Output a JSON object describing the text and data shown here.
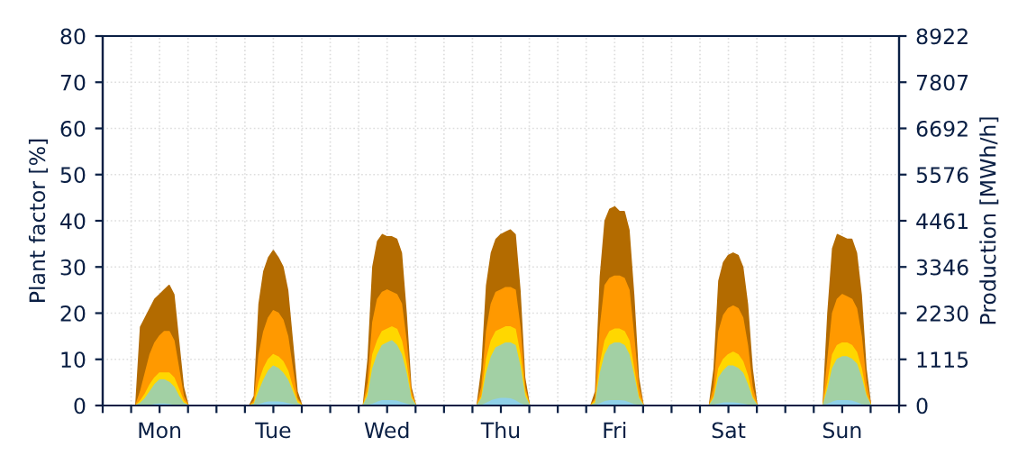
{
  "chart_data": {
    "type": "area",
    "ylabel": "Plant factor [%]",
    "y2label": "Production [MWh/h]",
    "categories": [
      null,
      null,
      null,
      null,
      null,
      null,
      null,
      null,
      null,
      null,
      null,
      null,
      "Mon",
      null,
      null,
      null,
      null,
      null,
      null,
      null,
      null,
      null,
      null,
      null,
      null,
      null,
      null,
      null,
      null,
      null,
      null,
      null,
      null,
      null,
      null,
      null,
      "Tue",
      null,
      null,
      null,
      null,
      null,
      null,
      null,
      null,
      null,
      null,
      null,
      null,
      null,
      null,
      null,
      null,
      null,
      null,
      null,
      null,
      null,
      null,
      null,
      "Wed",
      null,
      null,
      null,
      null,
      null,
      null,
      null,
      null,
      null,
      null,
      null,
      null,
      null,
      null,
      null,
      null,
      null,
      null,
      null,
      null,
      null,
      null,
      null,
      "Thu",
      null,
      null,
      null,
      null,
      null,
      null,
      null,
      null,
      null,
      null,
      null,
      null,
      null,
      null,
      null,
      null,
      null,
      null,
      null,
      null,
      null,
      null,
      null,
      "Fri",
      null,
      null,
      null,
      null,
      null,
      null,
      null,
      null,
      null,
      null,
      null,
      null,
      null,
      null,
      null,
      null,
      null,
      null,
      null,
      null,
      null,
      null,
      null,
      "Sat",
      null,
      null,
      null,
      null,
      null,
      null,
      null,
      null,
      null,
      null,
      null,
      null,
      null,
      null,
      null,
      null,
      null,
      null,
      null,
      null,
      null,
      null,
      null,
      "Sun",
      null,
      null,
      null,
      null,
      null,
      null,
      null,
      null,
      null,
      null,
      null,
      null
    ],
    "series": [
      {
        "color": "#b36b00",
        "values": [
          0,
          0,
          0,
          0,
          0,
          0,
          0,
          0,
          17,
          19,
          21,
          23,
          24,
          25,
          26,
          24,
          14,
          4,
          0,
          0,
          0,
          0,
          0,
          0,
          0,
          0,
          0,
          0,
          0,
          0,
          0,
          0,
          2,
          22,
          29,
          32,
          33.5,
          32,
          30,
          25,
          14,
          3,
          0,
          0,
          0,
          0,
          0,
          0,
          0,
          0,
          0,
          0,
          0,
          0,
          0,
          0,
          10,
          30,
          35.5,
          37,
          36.5,
          36.5,
          36,
          33,
          20,
          4,
          0,
          0,
          0,
          0,
          0,
          0,
          0,
          0,
          0,
          0,
          0,
          0,
          0,
          0,
          8,
          26,
          33,
          36,
          37,
          37.5,
          38,
          37,
          25,
          6,
          0,
          0,
          0,
          0,
          0,
          0,
          0,
          0,
          0,
          0,
          0,
          0,
          0,
          0,
          3,
          28,
          40,
          42.5,
          43,
          42,
          42,
          38,
          24,
          6,
          0,
          0,
          0,
          0,
          0,
          0,
          0,
          0,
          0,
          0,
          0,
          0,
          0,
          0,
          0,
          8,
          27,
          31,
          32.5,
          33,
          32.5,
          30,
          22,
          8,
          0,
          0,
          0,
          0,
          0,
          0,
          0,
          0,
          0,
          0,
          0,
          0,
          0,
          0,
          0,
          20,
          34,
          37,
          36.5,
          36,
          36,
          33,
          24,
          8,
          0,
          0,
          0,
          0,
          0,
          0,
          0
        ]
      },
      {
        "color": "#ff9900",
        "values": [
          0,
          0,
          0,
          0,
          0,
          0,
          0,
          0,
          3,
          7,
          11,
          13.5,
          15,
          16,
          16,
          14,
          8,
          2,
          0,
          0,
          0,
          0,
          0,
          0,
          0,
          0,
          0,
          0,
          0,
          0,
          0,
          0,
          1,
          11,
          16,
          19,
          20.5,
          20,
          18.5,
          15,
          8,
          1.5,
          0,
          0,
          0,
          0,
          0,
          0,
          0,
          0,
          0,
          0,
          0,
          0,
          0,
          0,
          5,
          18,
          23,
          24.5,
          25,
          24.5,
          24,
          22,
          14,
          3,
          0,
          0,
          0,
          0,
          0,
          0,
          0,
          0,
          0,
          0,
          0,
          0,
          0,
          0,
          4,
          16,
          22,
          24.5,
          25,
          25.5,
          25.5,
          25,
          17,
          4,
          0,
          0,
          0,
          0,
          0,
          0,
          0,
          0,
          0,
          0,
          0,
          0,
          0,
          0,
          1.5,
          17,
          26,
          27.5,
          28,
          28,
          27.5,
          25,
          15,
          4,
          0,
          0,
          0,
          0,
          0,
          0,
          0,
          0,
          0,
          0,
          0,
          0,
          0,
          0,
          0,
          4,
          16,
          19.5,
          21,
          21.5,
          21,
          19,
          13,
          4,
          0,
          0,
          0,
          0,
          0,
          0,
          0,
          0,
          0,
          0,
          0,
          0,
          0,
          0,
          0,
          10,
          20,
          23,
          24,
          23.5,
          23,
          21,
          15,
          5,
          0,
          0,
          0,
          0,
          0,
          0,
          0
        ]
      },
      {
        "color": "#ffd700",
        "values": [
          0,
          0,
          0,
          0,
          0,
          0,
          0,
          0,
          1,
          2.5,
          4.5,
          6,
          7,
          7,
          7,
          6,
          3.5,
          1,
          0,
          0,
          0,
          0,
          0,
          0,
          0,
          0,
          0,
          0,
          0,
          0,
          0,
          0,
          0.5,
          5,
          8,
          10,
          11,
          10.5,
          9.5,
          7.5,
          4,
          1,
          0,
          0,
          0,
          0,
          0,
          0,
          0,
          0,
          0,
          0,
          0,
          0,
          0,
          0,
          3,
          11,
          14,
          16,
          16.5,
          17,
          16.5,
          14,
          9,
          2,
          0,
          0,
          0,
          0,
          0,
          0,
          0,
          0,
          0,
          0,
          0,
          0,
          0,
          0,
          2,
          10,
          14,
          16,
          16.5,
          17,
          17,
          16.5,
          11,
          3,
          0,
          0,
          0,
          0,
          0,
          0,
          0,
          0,
          0,
          0,
          0,
          0,
          0,
          0,
          1,
          9,
          14,
          16,
          16.5,
          16.5,
          16,
          14,
          8,
          2,
          0,
          0,
          0,
          0,
          0,
          0,
          0,
          0,
          0,
          0,
          0,
          0,
          0,
          0,
          0,
          2,
          8,
          10,
          11,
          11.5,
          11,
          9.5,
          6.5,
          2,
          0,
          0,
          0,
          0,
          0,
          0,
          0,
          0,
          0,
          0,
          0,
          0,
          0,
          0,
          0,
          5,
          11,
          13,
          13.5,
          13.5,
          13,
          11.5,
          8,
          2.5,
          0,
          0,
          0,
          0,
          0,
          0,
          0
        ]
      },
      {
        "color": "#a2d0a4",
        "values": [
          0,
          0,
          0,
          0,
          0,
          0,
          0,
          0,
          0.5,
          1.5,
          3,
          4.5,
          5.5,
          5.5,
          5,
          4,
          2,
          0.5,
          0,
          0,
          0,
          0,
          0,
          0,
          0,
          0,
          0,
          0,
          0,
          0,
          0,
          0,
          0.3,
          3,
          5.5,
          7.5,
          8.5,
          8,
          7,
          5.5,
          3,
          0.5,
          0,
          0,
          0,
          0,
          0,
          0,
          0,
          0,
          0,
          0,
          0,
          0,
          0,
          0,
          2,
          8,
          11,
          13,
          13.5,
          14,
          13,
          11,
          7,
          1.5,
          0,
          0,
          0,
          0,
          0,
          0,
          0,
          0,
          0,
          0,
          0,
          0,
          0,
          0,
          1.5,
          7,
          10.5,
          12.5,
          13,
          13.5,
          13.5,
          13,
          8.5,
          2,
          0,
          0,
          0,
          0,
          0,
          0,
          0,
          0,
          0,
          0,
          0,
          0,
          0,
          0,
          0.5,
          7,
          11,
          13,
          13.5,
          13.5,
          13,
          11,
          6.5,
          1.5,
          0,
          0,
          0,
          0,
          0,
          0,
          0,
          0,
          0,
          0,
          0,
          0,
          0,
          0,
          0,
          1.5,
          6,
          7.5,
          8.5,
          8.5,
          8,
          7,
          4.5,
          1.5,
          0,
          0,
          0,
          0,
          0,
          0,
          0,
          0,
          0,
          0,
          0,
          0,
          0,
          0,
          0,
          3.5,
          8,
          10,
          10.5,
          10.5,
          10,
          9,
          6,
          2,
          0,
          0,
          0,
          0,
          0,
          0,
          0
        ]
      },
      {
        "color": "#8fd0e8",
        "values": [
          0,
          0,
          0,
          0,
          0,
          0,
          0,
          0,
          0,
          0,
          0,
          0.2,
          0.3,
          0.3,
          0.2,
          0,
          0,
          0,
          0,
          0,
          0,
          0,
          0,
          0,
          0,
          0,
          0,
          0,
          0,
          0,
          0,
          0,
          0,
          0.2,
          0.5,
          0.7,
          0.7,
          0.7,
          0.6,
          0.4,
          0.2,
          0,
          0,
          0,
          0,
          0,
          0,
          0,
          0,
          0,
          0,
          0,
          0,
          0,
          0,
          0,
          0,
          0.3,
          0.7,
          1,
          1,
          1,
          0.9,
          0.6,
          0.3,
          0,
          0,
          0,
          0,
          0,
          0,
          0,
          0,
          0,
          0,
          0,
          0,
          0,
          0,
          0,
          0,
          0.5,
          1,
          1.3,
          1.5,
          1.5,
          1.4,
          1,
          0.4,
          0,
          0,
          0,
          0,
          0,
          0,
          0,
          0,
          0,
          0,
          0,
          0,
          0,
          0,
          0,
          0,
          0.4,
          0.8,
          1,
          1,
          1,
          0.9,
          0.6,
          0.2,
          0,
          0,
          0,
          0,
          0,
          0,
          0,
          0,
          0,
          0,
          0,
          0,
          0,
          0,
          0,
          0,
          0.1,
          0.3,
          0.5,
          0.5,
          0.5,
          0.4,
          0.3,
          0.1,
          0,
          0,
          0,
          0,
          0,
          0,
          0,
          0,
          0,
          0,
          0,
          0,
          0,
          0,
          0,
          0,
          0.3,
          0.7,
          1,
          1,
          1,
          0.9,
          0.6,
          0.2,
          0,
          0,
          0,
          0,
          0,
          0,
          0,
          0
        ]
      }
    ],
    "ylim": [
      0,
      80
    ],
    "yticks": [
      0,
      10,
      20,
      30,
      40,
      50,
      60,
      70,
      80
    ],
    "y2lim": [
      0,
      8922
    ],
    "y2ticks": [
      0,
      1115,
      2230,
      3346,
      4461,
      5576,
      6692,
      7807,
      8922
    ],
    "grid": true,
    "legend": false
  }
}
